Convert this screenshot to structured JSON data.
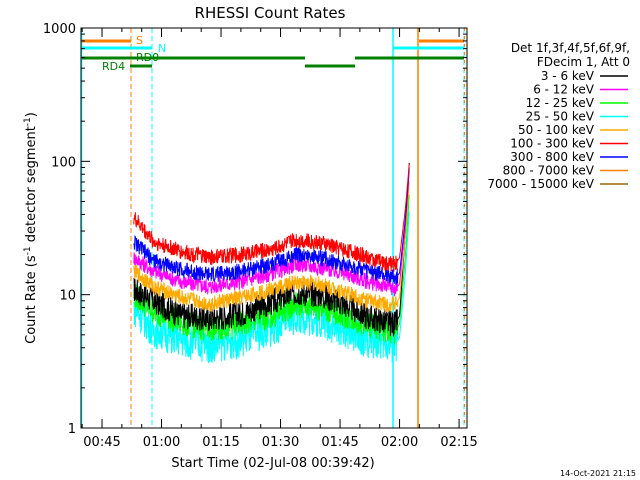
{
  "chart_data": {
    "type": "line",
    "title": "RHESSI Count Rates",
    "xlabel": "Start Time (02-Jul-08 00:39:42)",
    "ylabel_main": "Count Rate (s",
    "ylabel_sup1": "-1",
    "ylabel_mid": " detector segment",
    "ylabel_sup2": "-1",
    "ylabel_end": ")",
    "y_scale": "log",
    "ylim": [
      1,
      1000
    ],
    "xlim_minutes": [
      39.7,
      137.0
    ],
    "x_ticks": [
      {
        "t": 45,
        "label": "00:45"
      },
      {
        "t": 60,
        "label": "01:00"
      },
      {
        "t": 75,
        "label": "01:15"
      },
      {
        "t": 90,
        "label": "01:30"
      },
      {
        "t": 105,
        "label": "01:45"
      },
      {
        "t": 120,
        "label": "02:00"
      },
      {
        "t": 135,
        "label": "02:15"
      }
    ],
    "y_ticks": [
      {
        "v": 1,
        "label": "1"
      },
      {
        "v": 10,
        "label": "10"
      },
      {
        "v": 100,
        "label": "100"
      },
      {
        "v": 1000,
        "label": "1000"
      }
    ],
    "legend_header": [
      "Det 1f,3f,4f,5f,6f,9f,",
      "FDecim 1, Att 0"
    ],
    "series": [
      {
        "name": "3 - 6 keV",
        "color": "#000000",
        "x": [
          53,
          58,
          65,
          72,
          80,
          88,
          94,
          100,
          106,
          112,
          117,
          119,
          120,
          121.5,
          122.5
        ],
        "y": [
          11,
          9,
          7,
          6.6,
          7.2,
          8.8,
          10.5,
          10,
          8.5,
          6.8,
          6.2,
          6.0,
          7.0,
          30,
          105
        ]
      },
      {
        "name": "6 - 12 keV",
        "color": "#ff00ff",
        "x": [
          53,
          58,
          65,
          72,
          80,
          88,
          94,
          100,
          106,
          112,
          117,
          119,
          120,
          121.5,
          122.5
        ],
        "y": [
          19,
          15,
          12.5,
          11.5,
          12.5,
          14.5,
          17,
          16,
          14.5,
          12.5,
          11.5,
          11,
          12,
          35,
          90
        ]
      },
      {
        "name": "12 - 25 keV",
        "color": "#00ff00",
        "x": [
          53,
          58,
          65,
          72,
          80,
          88,
          94,
          100,
          106,
          112,
          117,
          119,
          120,
          121.5,
          122.5
        ],
        "y": [
          10,
          7.5,
          6.2,
          5.5,
          6.0,
          7.0,
          8.5,
          8.0,
          7.0,
          6.0,
          5.5,
          5.3,
          6.0,
          20,
          60
        ]
      },
      {
        "name": "25 - 50 keV",
        "color": "#00ffff",
        "x": [
          53,
          58,
          65,
          72,
          80,
          88,
          94,
          100,
          106,
          112,
          117,
          119,
          120,
          121.5,
          122.5
        ],
        "y": [
          8,
          5.5,
          4.6,
          4.2,
          4.6,
          5.6,
          7.0,
          6.5,
          5.5,
          4.6,
          4.3,
          4.2,
          4.8,
          15,
          45
        ]
      },
      {
        "name": "50 - 100 keV",
        "color": "#ffaa00",
        "x": [
          53,
          58,
          65,
          72,
          80,
          88,
          94,
          100,
          106,
          112,
          117,
          119,
          120,
          121.5,
          122.5
        ],
        "y": [
          15,
          11.5,
          9.5,
          8.5,
          9.5,
          11,
          12.5,
          12,
          10.5,
          9,
          8.5,
          8.5,
          9.5,
          28,
          75
        ]
      },
      {
        "name": "100 - 300 keV",
        "color": "#ff0000",
        "x": [
          53,
          58,
          65,
          72,
          80,
          88,
          94,
          100,
          106,
          112,
          117,
          119,
          120,
          121.5,
          122.5
        ],
        "y": [
          38,
          25,
          21,
          19,
          20,
          22,
          26,
          24.5,
          22,
          19,
          17,
          17,
          19,
          45,
          100
        ]
      },
      {
        "name": "300 - 800 keV",
        "color": "#0000ff",
        "x": [
          53,
          58,
          65,
          72,
          80,
          88,
          94,
          100,
          106,
          112,
          117,
          119,
          120,
          121.5,
          122.5
        ],
        "y": [
          25,
          18,
          15.5,
          14,
          15,
          17,
          20,
          19,
          17,
          15,
          14,
          13.5,
          14.5,
          38,
          95
        ]
      },
      {
        "name": "800 - 7000 keV",
        "color": "#ff7f00",
        "x": [],
        "y": []
      },
      {
        "name": "7000 - 15000 keV",
        "color": "#996600",
        "x": [],
        "y": []
      }
    ],
    "annotations": [
      {
        "label": "S",
        "color": "#ff7f00"
      },
      {
        "label": "N",
        "color": "#00ffff"
      },
      {
        "label": "RD0",
        "color": "#008000"
      },
      {
        "label": "RD4",
        "color": "#008000"
      }
    ],
    "timestamp": "14-Oct-2021 21:15"
  }
}
